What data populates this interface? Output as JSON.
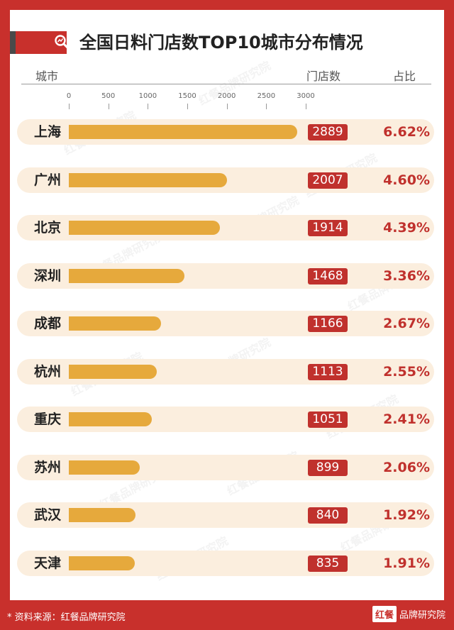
{
  "header": {
    "title": "全国日料门店数TOP10城市分布情况",
    "col_city": "城市",
    "col_count": "门店数",
    "col_share": "占比"
  },
  "chart_data": {
    "type": "bar",
    "orientation": "horizontal",
    "title": "全国日料门店数TOP10城市分布情况",
    "xlim": [
      0,
      3000
    ],
    "ticks": [
      "0",
      "500",
      "1000",
      "1500",
      "2000",
      "2500",
      "3000"
    ],
    "categories": [
      "上海",
      "广州",
      "北京",
      "深圳",
      "成都",
      "杭州",
      "重庆",
      "苏州",
      "武汉",
      "天津"
    ],
    "values": [
      2889,
      2007,
      1914,
      1468,
      1166,
      1113,
      1051,
      899,
      840,
      835
    ],
    "value_labels": [
      "2889",
      "2007",
      "1914",
      "1468",
      "1166",
      "1113",
      "1051",
      "899",
      "840",
      "835"
    ],
    "shares": [
      "6.62%",
      "4.60%",
      "4.39%",
      "3.36%",
      "2.67%",
      "2.55%",
      "2.41%",
      "2.06%",
      "1.92%",
      "1.91%"
    ]
  },
  "colors": {
    "frame": "#c8302c",
    "bar": "#e6a93c",
    "row_background": "#fbeede",
    "count_box": "#c0312d",
    "share_text": "#c0312d"
  },
  "watermark": "红餐品牌研究院",
  "footer": {
    "source": "* 资料来源：红餐品牌研究院",
    "logo_mark": "红餐",
    "logo_text": "品牌研究院"
  },
  "icons": {
    "title": "search-chart-icon"
  }
}
